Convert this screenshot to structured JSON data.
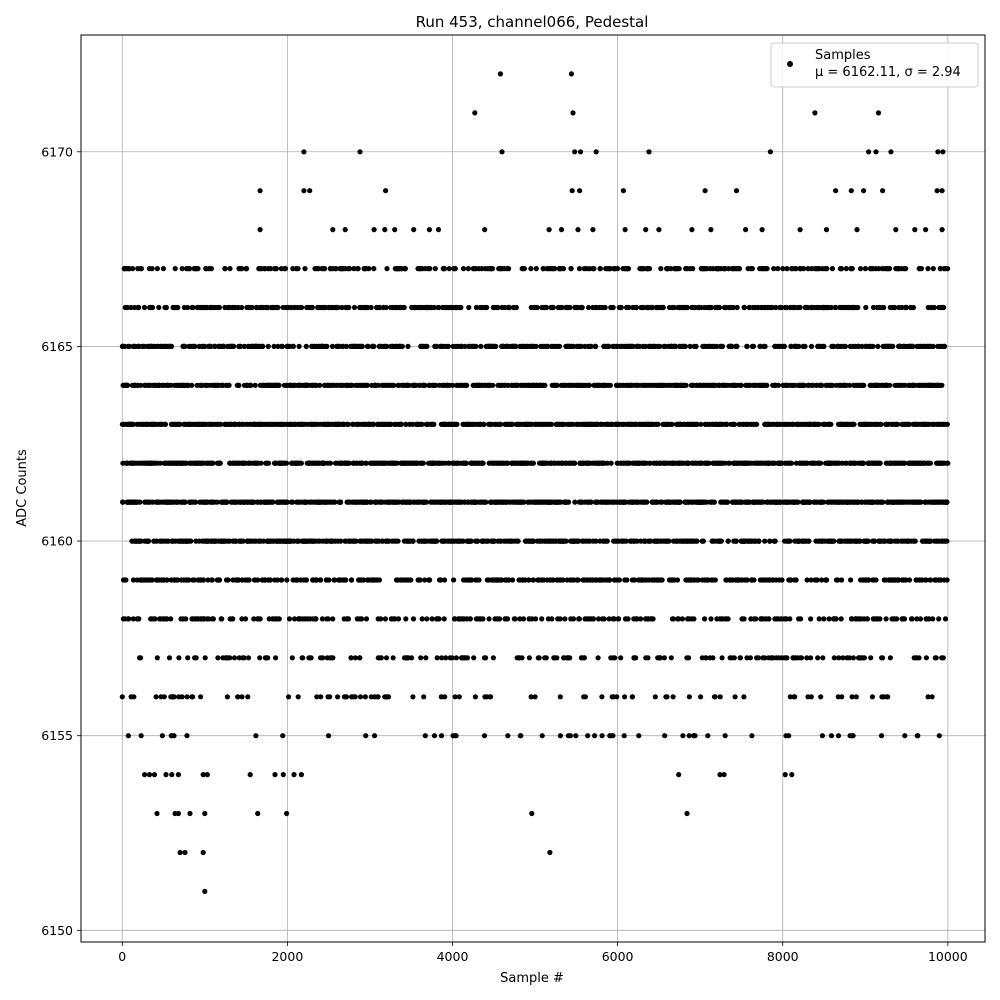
{
  "chart_data": {
    "type": "scatter",
    "title": "Run 453, channel066, Pedestal",
    "xlabel": "Sample #",
    "ylabel": "ADC Counts",
    "xlim": [
      -500,
      10450
    ],
    "ylim": [
      6149.7,
      6173.0
    ],
    "x_ticks": [
      0,
      2000,
      4000,
      6000,
      8000,
      10000
    ],
    "y_ticks": [
      6150,
      6155,
      6160,
      6165,
      6170
    ],
    "grid": true,
    "legend_placement": "top-right",
    "marker_color": "#000000",
    "series": [
      {
        "name": "Samples",
        "stats_label": "μ = 6162.11, σ = 2.94",
        "mean": 6162.11,
        "sigma": 2.94,
        "sample_count": 10000,
        "points": [
          [
            1000,
            6151
          ],
          [
            700,
            6152
          ],
          [
            760,
            6152
          ],
          [
            980,
            6152
          ],
          [
            5180,
            6152
          ],
          [
            420,
            6153
          ],
          [
            640,
            6153
          ],
          [
            680,
            6153
          ],
          [
            820,
            6153
          ],
          [
            1000,
            6153
          ],
          [
            1640,
            6153
          ],
          [
            1990,
            6153
          ],
          [
            4960,
            6153
          ],
          [
            6840,
            6153
          ],
          [
            270,
            6154
          ],
          [
            330,
            6154
          ],
          [
            390,
            6154
          ],
          [
            530,
            6154
          ],
          [
            600,
            6154
          ],
          [
            680,
            6154
          ],
          [
            980,
            6154
          ],
          [
            1030,
            6154
          ],
          [
            1550,
            6154
          ],
          [
            1850,
            6154
          ],
          [
            1950,
            6154
          ],
          [
            2080,
            6154
          ],
          [
            2170,
            6154
          ],
          [
            6740,
            6154
          ],
          [
            7240,
            6154
          ],
          [
            7290,
            6154
          ],
          [
            8030,
            6154
          ],
          [
            8110,
            6154
          ],
          [
            8390,
            6171
          ],
          [
            9160,
            6171
          ],
          [
            4270,
            6171
          ],
          [
            5460,
            6171
          ],
          [
            4580,
            6172
          ],
          [
            5440,
            6172
          ],
          [
            2200,
            6170
          ],
          [
            2880,
            6170
          ],
          [
            4600,
            6170
          ],
          [
            5480,
            6170
          ],
          [
            5550,
            6170
          ],
          [
            5740,
            6170
          ],
          [
            6380,
            6170
          ],
          [
            7850,
            6170
          ],
          [
            9040,
            6170
          ],
          [
            9130,
            6170
          ],
          [
            9310,
            6170
          ],
          [
            9880,
            6170
          ],
          [
            9940,
            6170
          ],
          [
            1670,
            6169
          ],
          [
            2200,
            6169
          ],
          [
            2270,
            6169
          ],
          [
            3190,
            6169
          ],
          [
            5450,
            6169
          ],
          [
            5540,
            6169
          ],
          [
            6070,
            6169
          ],
          [
            7060,
            6169
          ],
          [
            7440,
            6169
          ],
          [
            8640,
            6169
          ],
          [
            8830,
            6169
          ],
          [
            8980,
            6169
          ],
          [
            9210,
            6169
          ],
          [
            9870,
            6169
          ],
          [
            9930,
            6169
          ],
          [
            1670,
            6168
          ],
          [
            2550,
            6168
          ],
          [
            2700,
            6168
          ],
          [
            3050,
            6168
          ],
          [
            3180,
            6168
          ],
          [
            3300,
            6168
          ],
          [
            3530,
            6168
          ],
          [
            3720,
            6168
          ],
          [
            3830,
            6168
          ],
          [
            4390,
            6168
          ],
          [
            5170,
            6168
          ],
          [
            5320,
            6168
          ],
          [
            5520,
            6168
          ],
          [
            5700,
            6168
          ],
          [
            6090,
            6168
          ],
          [
            6340,
            6168
          ],
          [
            6500,
            6168
          ],
          [
            6900,
            6168
          ],
          [
            7130,
            6168
          ],
          [
            7550,
            6168
          ],
          [
            7750,
            6168
          ],
          [
            8210,
            6168
          ],
          [
            8530,
            6168
          ],
          [
            8900,
            6168
          ],
          [
            9370,
            6168
          ],
          [
            9600,
            6168
          ],
          [
            9730,
            6168
          ],
          [
            9930,
            6168
          ]
        ]
      }
    ]
  }
}
